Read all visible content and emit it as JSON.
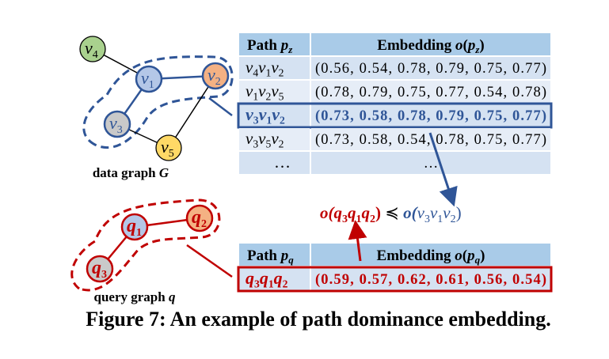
{
  "colors": {
    "blue": "#2f5597",
    "red": "#c00000",
    "header_bg": "#a9cbe8",
    "row_bg1": "#d5e2f2",
    "row_bg2": "#e6edf7",
    "green": "#a9d18e",
    "orange": "#f4b183",
    "lightblue": "#b4c7e7",
    "gray": "#c9c9c9",
    "yellow": "#ffd966"
  },
  "data_graph": {
    "label": "data graph ",
    "label_var": "G",
    "nodes": [
      {
        "id": "v4",
        "base": "v",
        "sub": "4",
        "fill": "green"
      },
      {
        "id": "v1",
        "base": "v",
        "sub": "1",
        "fill": "lightblue"
      },
      {
        "id": "v2",
        "base": "v",
        "sub": "2",
        "fill": "orange"
      },
      {
        "id": "v3",
        "base": "v",
        "sub": "3",
        "fill": "gray"
      },
      {
        "id": "v5",
        "base": "v",
        "sub": "5",
        "fill": "yellow"
      }
    ],
    "edges": [
      [
        "v4",
        "v1"
      ],
      [
        "v1",
        "v2"
      ],
      [
        "v1",
        "v3"
      ],
      [
        "v3",
        "v5"
      ],
      [
        "v5",
        "v2"
      ]
    ],
    "highlighted_path": [
      "v3",
      "v1",
      "v2"
    ]
  },
  "query_graph": {
    "label": "query graph ",
    "label_var": "q",
    "nodes": [
      {
        "id": "q1",
        "base": "q",
        "sub": "1",
        "fill": "lightblue"
      },
      {
        "id": "q2",
        "base": "q",
        "sub": "2",
        "fill": "orange"
      },
      {
        "id": "q3",
        "base": "q",
        "sub": "3",
        "fill": "gray"
      }
    ],
    "edges": [
      [
        "q1",
        "q2"
      ],
      [
        "q1",
        "q3"
      ]
    ],
    "highlighted_path": [
      "q3",
      "q1",
      "q2"
    ]
  },
  "data_table": {
    "header_path": {
      "text": "Path ",
      "var": "p",
      "sub": "z"
    },
    "header_embedding": {
      "text": "Embedding ",
      "var": "o",
      "arg": "p",
      "sub": "z"
    },
    "rows": [
      {
        "path": [
          [
            "v",
            "4"
          ],
          [
            "v",
            "1"
          ],
          [
            "v",
            "2"
          ]
        ],
        "embedding": "(0.56, 0.54, 0.78, 0.79, 0.75, 0.77)"
      },
      {
        "path": [
          [
            "v",
            "1"
          ],
          [
            "v",
            "2"
          ],
          [
            "v",
            "5"
          ]
        ],
        "embedding": "(0.78, 0.79, 0.75, 0.77, 0.54, 0.78)"
      },
      {
        "path": [
          [
            "v",
            "3"
          ],
          [
            "v",
            "1"
          ],
          [
            "v",
            "2"
          ]
        ],
        "embedding": "(0.73, 0.58, 0.78, 0.79, 0.75, 0.77)",
        "highlight": true
      },
      {
        "path": [
          [
            "v",
            "3"
          ],
          [
            "v",
            "5"
          ],
          [
            "v",
            "2"
          ]
        ],
        "embedding": "(0.73, 0.58, 0.54, 0.78, 0.75, 0.77)"
      },
      {
        "path_text": "…",
        "embedding": "…"
      }
    ]
  },
  "query_table": {
    "header_path": {
      "text": "Path ",
      "var": "p",
      "sub": "q"
    },
    "header_embedding": {
      "text": "Embedding ",
      "var": "o",
      "arg": "p",
      "sub": "q"
    },
    "rows": [
      {
        "path": [
          [
            "q",
            "3"
          ],
          [
            "q",
            "1"
          ],
          [
            "q",
            "2"
          ]
        ],
        "embedding": "(0.59, 0.57, 0.62, 0.61, 0.56, 0.54)",
        "highlight": true
      }
    ]
  },
  "dominance": {
    "left_fn": "o(",
    "left_path": [
      [
        "q",
        "3"
      ],
      [
        "q",
        "1"
      ],
      [
        "q",
        "2"
      ]
    ],
    "close": ")",
    "relation": " ≼ ",
    "right_fn": "o(",
    "right_path": [
      [
        "v",
        "3"
      ],
      [
        "v",
        "1"
      ],
      [
        "v",
        "2"
      ]
    ]
  },
  "caption": "Figure 7: An example of path dominance embedding."
}
